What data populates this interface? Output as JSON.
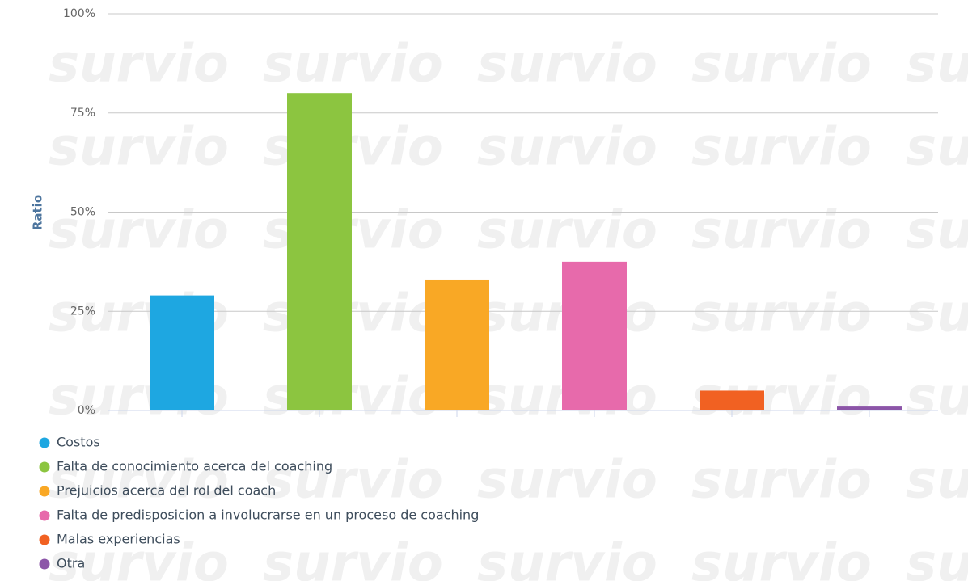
{
  "chart_data": {
    "type": "bar",
    "watermark": "survio",
    "y_label": "Ratio",
    "categories": [
      "Costos",
      "Falta de conocimiento acerca del coaching",
      "Prejuicios acerca del rol del coach",
      "Falta de predisposicion a involucrarse en un proceso de coaching",
      "Malas experiencias",
      "Otra"
    ],
    "values": [
      29,
      80,
      33,
      37.5,
      5,
      1
    ],
    "colors": [
      "#1ea7e1",
      "#8cc540",
      "#f9a825",
      "#e76aab",
      "#f16122",
      "#8c55a8"
    ],
    "ylim": [
      0,
      100
    ],
    "yticks": [
      {
        "value": 0,
        "label": "0%"
      },
      {
        "value": 25,
        "label": "25%"
      },
      {
        "value": 50,
        "label": "50%"
      },
      {
        "value": 75,
        "label": "75%"
      },
      {
        "value": 100,
        "label": "100%"
      }
    ],
    "grid": true
  }
}
